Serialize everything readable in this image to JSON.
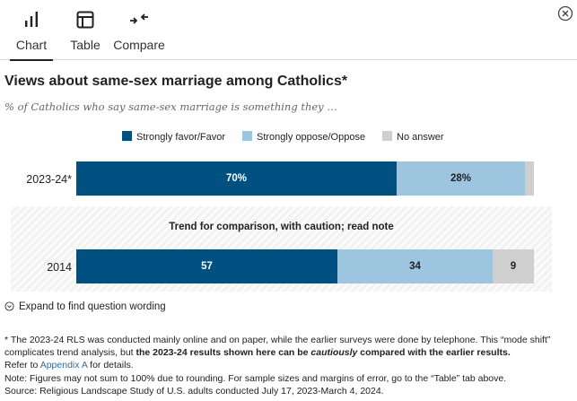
{
  "tabs": [
    {
      "label": "Chart",
      "icon": "bar-chart-icon",
      "active": true
    },
    {
      "label": "Table",
      "icon": "table-icon",
      "active": false
    },
    {
      "label": "Compare",
      "icon": "compare-arrows-icon",
      "active": false
    }
  ],
  "close_icon": "close-icon",
  "title": "Views about same-sex marriage among Catholics*",
  "subtitle": "% of Catholics who say same-sex marriage is something they …",
  "legend": [
    {
      "label": "Strongly favor/Favor",
      "color": "#005182"
    },
    {
      "label": "Strongly oppose/Oppose",
      "color": "#9dc5e0"
    },
    {
      "label": "No answer",
      "color": "#cfcfcf"
    }
  ],
  "caution_label": "Trend for comparison, with caution; read note",
  "chart_data": {
    "type": "bar",
    "orientation": "horizontal-stacked",
    "categories": [
      "2023-24*",
      "2014"
    ],
    "series": [
      {
        "name": "Strongly favor/Favor",
        "values": [
          70,
          57
        ],
        "labels": [
          "70%",
          "57"
        ]
      },
      {
        "name": "Strongly oppose/Oppose",
        "values": [
          28,
          34
        ],
        "labels": [
          "28%",
          "34"
        ]
      },
      {
        "name": "No answer",
        "values": [
          2,
          9
        ],
        "labels": [
          "",
          "9"
        ]
      }
    ],
    "xlim": [
      0,
      100
    ],
    "grid": false,
    "legend_position": "top"
  },
  "expand_label": "Expand to find question wording",
  "notes": {
    "line1_a": "* The 2023-24 RLS was conducted mainly online and on paper, while the earlier surveys were done by telephone. This “mode shift” complicates trend analysis, but ",
    "line1_b": "the 2023-24 results shown here can be ",
    "line1_c": "cautiously",
    "line1_d": " compared with the earlier results.",
    "refer_a": "Refer to ",
    "refer_link": "Appendix A",
    "refer_b": " for details.",
    "note": "Note: Figures may not sum to 100% due to rounding. For sample sizes and margins of error, go to the “Table” tab above.",
    "source": "Source: Religious Landscape Study of U.S. adults conducted July 17, 2023-March 4, 2024."
  }
}
